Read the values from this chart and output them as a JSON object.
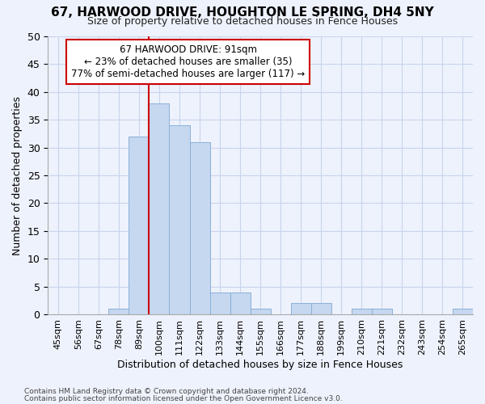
{
  "title": "67, HARWOOD DRIVE, HOUGHTON LE SPRING, DH4 5NY",
  "subtitle": "Size of property relative to detached houses in Fence Houses",
  "xlabel": "Distribution of detached houses by size in Fence Houses",
  "ylabel": "Number of detached properties",
  "bin_labels": [
    "45sqm",
    "56sqm",
    "67sqm",
    "78sqm",
    "89sqm",
    "100sqm",
    "111sqm",
    "122sqm",
    "133sqm",
    "144sqm",
    "155sqm",
    "166sqm",
    "177sqm",
    "188sqm",
    "199sqm",
    "210sqm",
    "221sqm",
    "232sqm",
    "243sqm",
    "254sqm",
    "265sqm"
  ],
  "bar_values": [
    0,
    0,
    0,
    1,
    32,
    38,
    34,
    31,
    4,
    4,
    1,
    0,
    2,
    2,
    0,
    1,
    1,
    0,
    0,
    0,
    1
  ],
  "bar_color": "#c5d8f0",
  "bar_edge_color": "#8ab0d8",
  "property_line_color": "#cc0000",
  "annotation_text": "67 HARWOOD DRIVE: 91sqm\n← 23% of detached houses are smaller (35)\n77% of semi-detached houses are larger (117) →",
  "annotation_box_color": "#ffffff",
  "annotation_box_edge": "#cc0000",
  "ylim": [
    0,
    50
  ],
  "yticks": [
    0,
    5,
    10,
    15,
    20,
    25,
    30,
    35,
    40,
    45,
    50
  ],
  "footer_line1": "Contains HM Land Registry data © Crown copyright and database right 2024.",
  "footer_line2": "Contains public sector information licensed under the Open Government Licence v3.0.",
  "background_color": "#eef2fc",
  "grid_color": "#c8d4ec"
}
